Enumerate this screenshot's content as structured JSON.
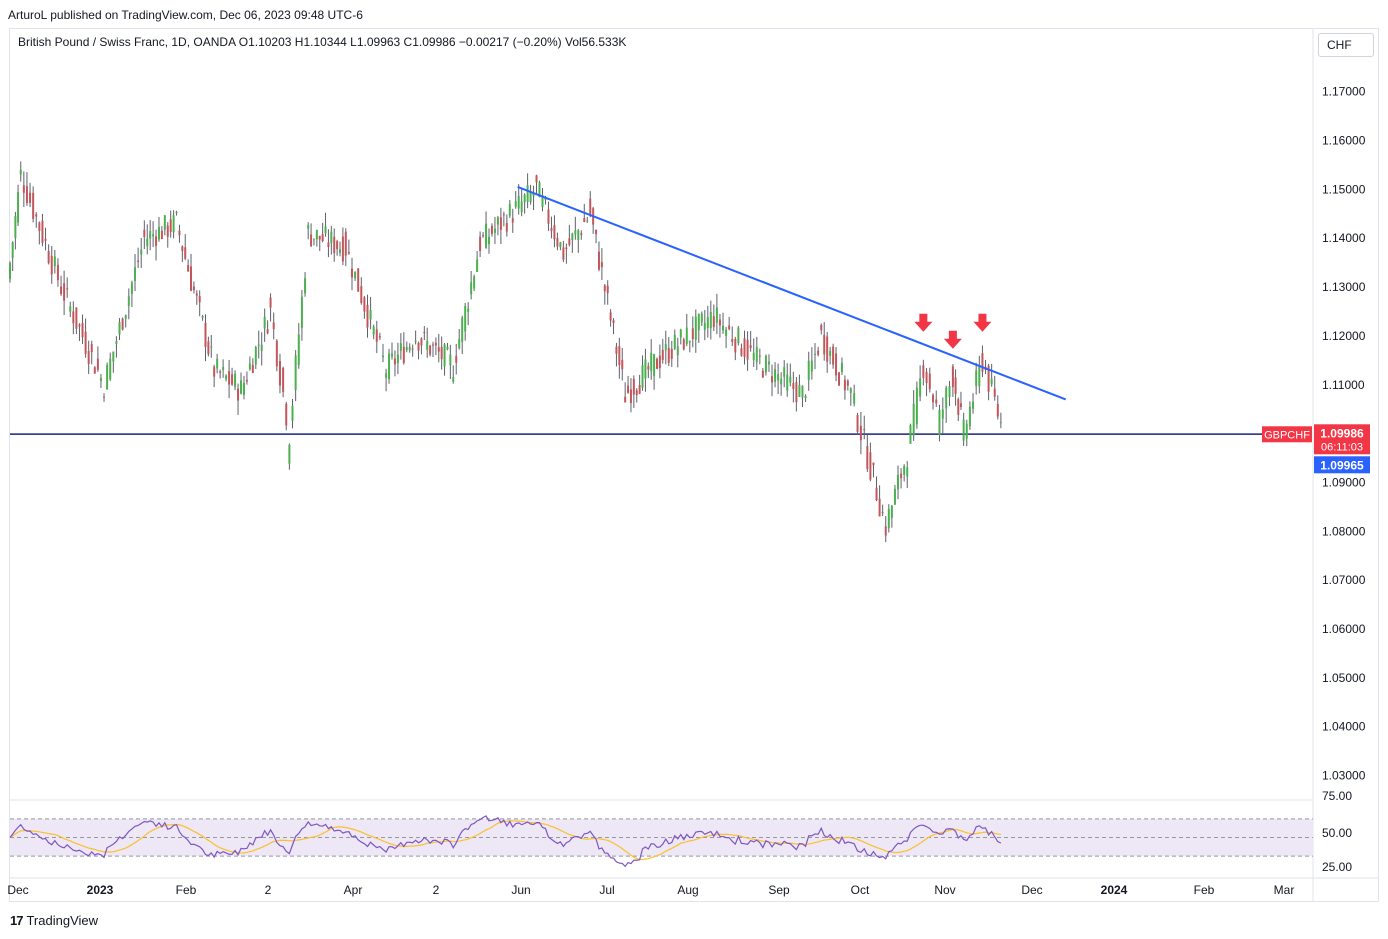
{
  "header": {
    "published": "ArturoL published on TradingView.com, Dec 06, 2023 09:48 UTC-6"
  },
  "legend": {
    "text": "British Pound / Swiss Franc, 1D, OANDA  O1.10203  H1.10344  L1.09963  C1.09986  −0.00217 (−0.20%)  Vol56.533K"
  },
  "currency": "CHF",
  "footer": {
    "brand": "TradingView"
  },
  "chart_data": {
    "type": "candlestick",
    "symbol": "GBPCHF",
    "price_axis": {
      "ticks": [
        "1.17000",
        "1.16000",
        "1.15000",
        "1.14000",
        "1.13000",
        "1.12000",
        "1.11000",
        "1.09000",
        "1.08000",
        "1.07000",
        "1.06000",
        "1.05000",
        "1.04000",
        "1.03000"
      ],
      "tick_values": [
        1.17,
        1.16,
        1.15,
        1.14,
        1.13,
        1.12,
        1.11,
        1.09,
        1.08,
        1.07,
        1.06,
        1.05,
        1.04,
        1.03
      ],
      "range": [
        1.025,
        1.1775
      ]
    },
    "time_axis": {
      "labels": [
        "Dec",
        "2023",
        "Feb",
        "2",
        "Apr",
        "2",
        "Jun",
        "Jul",
        "Aug",
        "Sep",
        "Oct",
        "Nov",
        "Dec",
        "2024",
        "Feb",
        "Mar"
      ],
      "bold": [
        "2023",
        "2024"
      ]
    },
    "last_price": {
      "label": "GBPCHF",
      "value": "1.09986",
      "countdown": "06:11:03",
      "line_value": 1.09986
    },
    "bid_label": {
      "value": "1.09965",
      "color": "#2962ff"
    },
    "support_line": {
      "value": 1.0999,
      "color": "#1a237e"
    },
    "trendline": {
      "from": {
        "time": "2023-06-08",
        "price": 1.1505
      },
      "to": {
        "time": "2023-12-29",
        "price": 1.107
      },
      "color": "#2962ff"
    },
    "arrows": [
      {
        "time": "2023-11-06",
        "price": 1.1225
      },
      {
        "time": "2023-11-17",
        "price": 1.119
      },
      {
        "time": "2023-11-28",
        "price": 1.1225
      }
    ],
    "key_swings": [
      {
        "time": "2022-12-01",
        "price": 1.135
      },
      {
        "time": "2022-12-05",
        "price": 1.153
      },
      {
        "time": "2022-12-20",
        "price": 1.13
      },
      {
        "time": "2023-01-05",
        "price": 1.11
      },
      {
        "time": "2023-01-20",
        "price": 1.14
      },
      {
        "time": "2023-02-01",
        "price": 1.143
      },
      {
        "time": "2023-02-15",
        "price": 1.113
      },
      {
        "time": "2023-02-25",
        "price": 1.109
      },
      {
        "time": "2023-03-08",
        "price": 1.125
      },
      {
        "time": "2023-03-15",
        "price": 1.1
      },
      {
        "time": "2023-03-22",
        "price": 1.141
      },
      {
        "time": "2023-04-05",
        "price": 1.138
      },
      {
        "time": "2023-04-20",
        "price": 1.113
      },
      {
        "time": "2023-05-01",
        "price": 1.12
      },
      {
        "time": "2023-05-15",
        "price": 1.114
      },
      {
        "time": "2023-05-25",
        "price": 1.139
      },
      {
        "time": "2023-06-15",
        "price": 1.15
      },
      {
        "time": "2023-06-25",
        "price": 1.137
      },
      {
        "time": "2023-07-05",
        "price": 1.145
      },
      {
        "time": "2023-07-18",
        "price": 1.108
      },
      {
        "time": "2023-08-01",
        "price": 1.116
      },
      {
        "time": "2023-08-20",
        "price": 1.124
      },
      {
        "time": "2023-09-05",
        "price": 1.115
      },
      {
        "time": "2023-09-22",
        "price": 1.108
      },
      {
        "time": "2023-09-29",
        "price": 1.12
      },
      {
        "time": "2023-10-10",
        "price": 1.108
      },
      {
        "time": "2023-10-15",
        "price": 1.098
      },
      {
        "time": "2023-10-23",
        "price": 1.081
      },
      {
        "time": "2023-10-31",
        "price": 1.096
      },
      {
        "time": "2023-11-06",
        "price": 1.114
      },
      {
        "time": "2023-11-12",
        "price": 1.103
      },
      {
        "time": "2023-11-17",
        "price": 1.112
      },
      {
        "time": "2023-11-21",
        "price": 1.1
      },
      {
        "time": "2023-11-28",
        "price": 1.115
      },
      {
        "time": "2023-12-06",
        "price": 1.0999
      }
    ],
    "rsi": {
      "levels": [
        "75.00",
        "50.00",
        "25.00"
      ],
      "level_values": [
        75,
        50,
        25
      ],
      "line_color": "#7e57c2",
      "ma_color": "#fbc02d",
      "band_color": "#ede7f6"
    }
  }
}
